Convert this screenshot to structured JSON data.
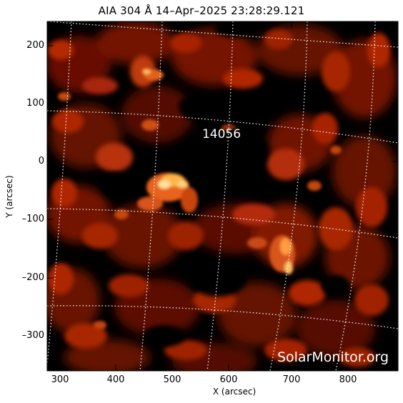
{
  "title": "AIA 304 Å 14–Apr–2025 23:28:29.121",
  "axes": {
    "xlabel": "X (arcsec)",
    "ylabel": "Y (arcsec)",
    "xticks": [
      "300",
      "400",
      "500",
      "600",
      "700",
      "800"
    ],
    "yticks": [
      "200",
      "100",
      "0",
      "–100",
      "–200",
      "–300"
    ]
  },
  "image": {
    "region_label": "14056",
    "watermark": "SolarMonitor.org",
    "colors": {
      "background": "#000000",
      "dark_red": "#5a0a00",
      "red": "#b52a05",
      "orange": "#e8681a",
      "bright": "#ffd27a",
      "grid": "#ffffff"
    }
  }
}
